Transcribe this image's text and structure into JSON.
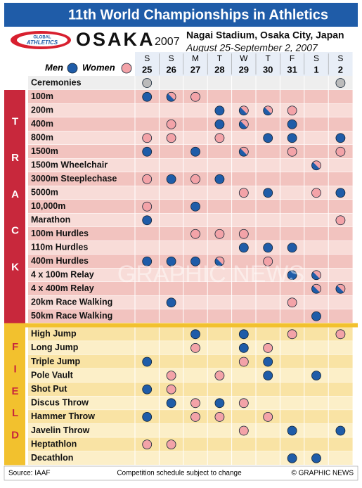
{
  "header": {
    "title": "11th World Championships in Athletics",
    "logo_top": "GLOBAL",
    "logo_bottom": "ATHLETICS",
    "city": "OSAKA",
    "year": "2007",
    "venue": "Nagai Stadium, Osaka City, Japan",
    "dates": "August 25-September 2, 2007"
  },
  "legend": {
    "men": "Men",
    "women": "Women"
  },
  "days": [
    {
      "weekday": "S",
      "date": "25"
    },
    {
      "weekday": "S",
      "date": "26"
    },
    {
      "weekday": "M",
      "date": "27"
    },
    {
      "weekday": "T",
      "date": "28"
    },
    {
      "weekday": "W",
      "date": "29"
    },
    {
      "weekday": "T",
      "date": "30"
    },
    {
      "weekday": "F",
      "date": "31"
    },
    {
      "weekday": "S",
      "date": "1"
    },
    {
      "weekday": "S",
      "date": "2"
    }
  ],
  "ceremonies": {
    "event": "Ceremonies",
    "cells": [
      "c",
      null,
      null,
      null,
      null,
      null,
      null,
      null,
      "c"
    ]
  },
  "sections": [
    {
      "label": "TRACK",
      "rows": [
        {
          "event": "100m",
          "cells": [
            "m",
            "b",
            "w",
            null,
            null,
            null,
            null,
            null,
            null
          ]
        },
        {
          "event": "200m",
          "cells": [
            null,
            null,
            null,
            "m",
            "b",
            "b",
            "w",
            null,
            null
          ]
        },
        {
          "event": "400m",
          "cells": [
            null,
            "w",
            null,
            "m",
            "b",
            null,
            "m",
            null,
            null
          ]
        },
        {
          "event": "800m",
          "cells": [
            "w",
            "w",
            null,
            "w",
            null,
            "m",
            "m",
            null,
            "m"
          ]
        },
        {
          "event": "1500m",
          "cells": [
            "m",
            null,
            "m",
            null,
            "b",
            null,
            "w",
            null,
            "w"
          ]
        },
        {
          "event": "1500m Wheelchair",
          "cells": [
            null,
            null,
            null,
            null,
            null,
            null,
            null,
            "b",
            null
          ]
        },
        {
          "event": "3000m Steeplechase",
          "cells": [
            "w",
            "m",
            "w",
            "m",
            null,
            null,
            null,
            null,
            null
          ]
        },
        {
          "event": "5000m",
          "cells": [
            null,
            null,
            null,
            null,
            "w",
            "m",
            null,
            "w",
            "m"
          ]
        },
        {
          "event": "10,000m",
          "cells": [
            "w",
            null,
            "m",
            null,
            null,
            null,
            null,
            null,
            null
          ]
        },
        {
          "event": "Marathon",
          "cells": [
            "m",
            null,
            null,
            null,
            null,
            null,
            null,
            null,
            "w"
          ]
        },
        {
          "event": "100m Hurdles",
          "cells": [
            null,
            null,
            "w",
            "w",
            "w",
            null,
            null,
            null,
            null
          ]
        },
        {
          "event": "110m Hurdles",
          "cells": [
            null,
            null,
            null,
            null,
            "m",
            "m",
            "m",
            null,
            null
          ]
        },
        {
          "event": "400m Hurdles",
          "cells": [
            "m",
            "m",
            "m",
            "b",
            null,
            "w",
            null,
            null,
            null
          ]
        },
        {
          "event": "4 x 100m Relay",
          "cells": [
            null,
            null,
            null,
            null,
            null,
            null,
            "m",
            "b",
            null
          ]
        },
        {
          "event": "4 x 400m Relay",
          "cells": [
            null,
            null,
            null,
            null,
            null,
            null,
            null,
            "b",
            "b"
          ]
        },
        {
          "event": "20km Race Walking",
          "cells": [
            null,
            "m",
            null,
            null,
            null,
            null,
            "w",
            null,
            null
          ]
        },
        {
          "event": "50km Race Walking",
          "cells": [
            null,
            null,
            null,
            null,
            null,
            null,
            null,
            "m",
            null
          ]
        }
      ]
    },
    {
      "label": "FIELD",
      "rows": [
        {
          "event": "High Jump",
          "cells": [
            null,
            null,
            "m",
            null,
            "m",
            null,
            "w",
            null,
            "w"
          ]
        },
        {
          "event": "Long Jump",
          "cells": [
            null,
            null,
            "w",
            null,
            "m",
            "w",
            null,
            null,
            null
          ]
        },
        {
          "event": "Triple Jump",
          "cells": [
            "m",
            null,
            null,
            null,
            "w",
            "m",
            null,
            null,
            null
          ]
        },
        {
          "event": "Pole Vault",
          "cells": [
            null,
            "w",
            null,
            "w",
            null,
            "m",
            null,
            "m",
            null
          ]
        },
        {
          "event": "Shot Put",
          "cells": [
            "m",
            "w",
            null,
            null,
            null,
            null,
            null,
            null,
            null
          ]
        },
        {
          "event": "Discus Throw",
          "cells": [
            null,
            "m",
            "w",
            "m",
            "w",
            null,
            null,
            null,
            null
          ]
        },
        {
          "event": "Hammer Throw",
          "cells": [
            "m",
            null,
            "w",
            "w",
            null,
            "w",
            null,
            null,
            null
          ]
        },
        {
          "event": "Javelin Throw",
          "cells": [
            null,
            null,
            null,
            null,
            "w",
            null,
            "m",
            null,
            "m"
          ]
        },
        {
          "event": "Heptathlon",
          "cells": [
            "w",
            "w",
            null,
            null,
            null,
            null,
            null,
            null,
            null
          ]
        },
        {
          "event": "Decathlon",
          "cells": [
            null,
            null,
            null,
            null,
            null,
            null,
            "m",
            "m",
            null
          ]
        }
      ]
    }
  ],
  "watermark": "GRAPHIC NEWS",
  "footer": {
    "source": "Source: IAAF",
    "note": "Competition schedule subject to change",
    "credit": "© GRAPHIC NEWS"
  }
}
